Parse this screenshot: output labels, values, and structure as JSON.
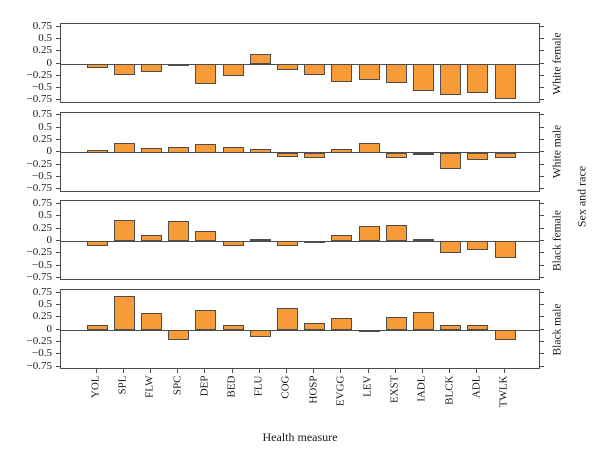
{
  "chart_data": {
    "type": "bar",
    "title": "",
    "xlabel": "Health measure",
    "right_axis_label": "Sex and race",
    "categories": [
      "YOL",
      "SPL",
      "FLW",
      "SPC",
      "DEP",
      "BED",
      "FLU",
      "COG",
      "HOSP",
      "EVGG",
      "LEV",
      "EXST",
      "IADL",
      "BLCK",
      "ADL",
      "TWLK"
    ],
    "series": [
      {
        "name": "White female",
        "values": [
          -0.08,
          -0.22,
          -0.16,
          -0.02,
          -0.4,
          -0.25,
          0.2,
          -0.13,
          -0.22,
          -0.36,
          -0.32,
          -0.38,
          -0.55,
          -0.62,
          -0.58,
          -0.7
        ]
      },
      {
        "name": "White male",
        "values": [
          0.05,
          0.2,
          0.09,
          0.11,
          0.17,
          0.12,
          0.08,
          -0.08,
          -0.1,
          0.07,
          0.2,
          -0.1,
          -0.02,
          -0.33,
          -0.14,
          -0.1
        ]
      },
      {
        "name": "Black female",
        "values": [
          -0.1,
          0.43,
          0.12,
          0.41,
          0.2,
          -0.1,
          0.05,
          -0.1,
          -0.01,
          0.13,
          0.32,
          0.34,
          0.05,
          -0.24,
          -0.18,
          -0.34
        ]
      },
      {
        "name": "Black male",
        "values": [
          0.11,
          0.69,
          0.34,
          -0.2,
          0.41,
          0.11,
          -0.14,
          0.44,
          0.15,
          0.24,
          0.01,
          0.27,
          0.36,
          0.11,
          0.1,
          -0.2
        ]
      }
    ],
    "ylim": [
      -0.81,
      0.81
    ],
    "yticks": [
      {
        "value": 0.75,
        "label": "0.75"
      },
      {
        "value": 0.5,
        "label": "0.5"
      },
      {
        "value": 0.25,
        "label": "0.25"
      },
      {
        "value": 0,
        "label": "0"
      },
      {
        "value": -0.25,
        "label": "−0.25"
      },
      {
        "value": -0.5,
        "label": "−0.5"
      },
      {
        "value": -0.75,
        "label": "−0.75"
      }
    ],
    "grid": false,
    "legend": "none",
    "panel_layout": "4 rows stacked, shared x axis, strip labels on right",
    "bar_color": "#F79A38",
    "bar_border_color": "#4D4D4D",
    "axis_color": "#4D4D4D"
  }
}
